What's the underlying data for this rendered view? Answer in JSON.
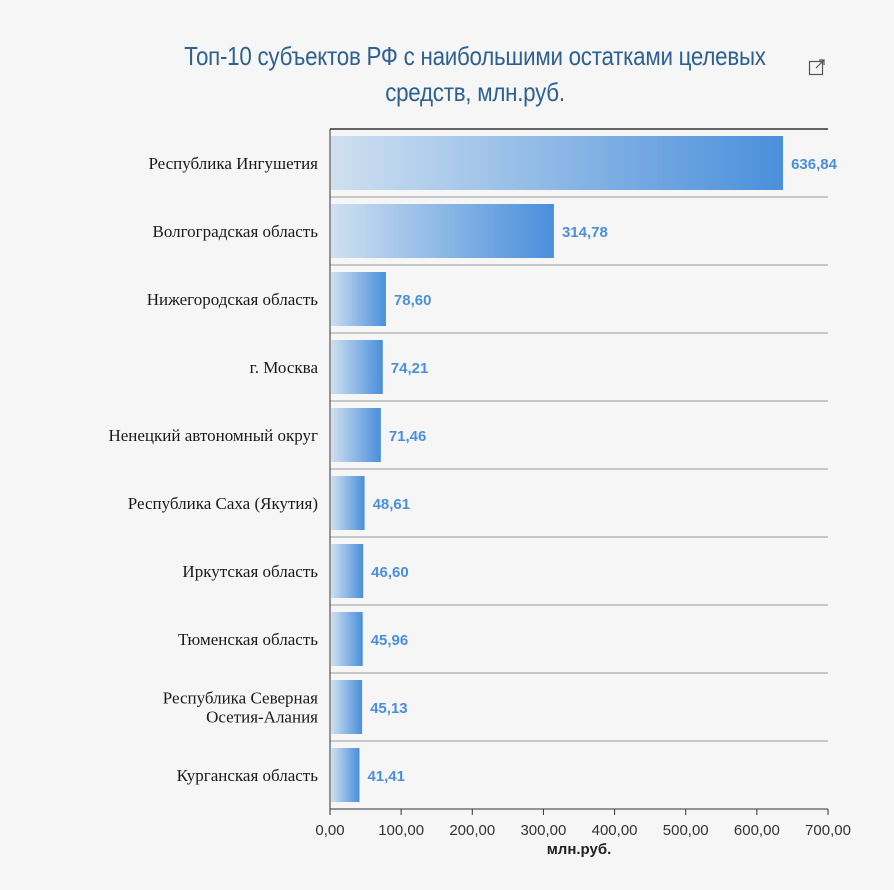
{
  "title": "Топ-10 субъектов РФ с наибольшими остатками целевых средств, млн.руб.",
  "icons": {
    "export": "export-icon"
  },
  "colors": {
    "bar_light": "#cfe0f0",
    "bar_dark": "#4a8fdb",
    "title": "#2f6190",
    "value_label": "#4a8fdb",
    "grid": "#888888"
  },
  "chart_data": {
    "type": "bar",
    "orientation": "horizontal",
    "title": "Топ-10 субъектов РФ с наибольшими остатками целевых средств, млн.руб.",
    "categories": [
      [
        "Республика Ингушетия"
      ],
      [
        "Волгоградская область"
      ],
      [
        "Нижегородская область"
      ],
      [
        "г. Москва"
      ],
      [
        "Ненецкий автономный округ"
      ],
      [
        "Республика Саха (Якутия)"
      ],
      [
        "Иркутская область"
      ],
      [
        "Тюменская область"
      ],
      [
        "Республика Северная",
        "Осетия-Алания"
      ],
      [
        "Курганская область"
      ]
    ],
    "values": [
      636.84,
      314.78,
      78.6,
      74.21,
      71.46,
      48.61,
      46.6,
      45.96,
      45.13,
      41.41
    ],
    "value_labels": [
      "636,84",
      "314,78",
      "78,60",
      "74,21",
      "71,46",
      "48,61",
      "46,60",
      "45,96",
      "45,13",
      "41,41"
    ],
    "xlim": [
      0,
      700
    ],
    "xticks": [
      0,
      100,
      200,
      300,
      400,
      500,
      600,
      700
    ],
    "xtick_labels": [
      "0,00",
      "100,00",
      "200,00",
      "300,00",
      "400,00",
      "500,00",
      "600,00",
      "700,00"
    ],
    "xlabel": "млн.руб.",
    "ylabel": "",
    "grid": "horizontal separators",
    "legend": "none"
  }
}
